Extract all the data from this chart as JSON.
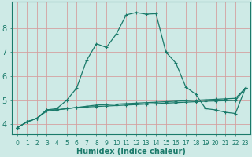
{
  "xlabel": "Humidex (Indice chaleur)",
  "bg_color": "#ceeae6",
  "grid_color": "#d4a0a0",
  "line_color": "#1a7a6a",
  "x": [
    0,
    1,
    2,
    3,
    4,
    5,
    6,
    7,
    8,
    9,
    10,
    11,
    12,
    13,
    14,
    15,
    16,
    17,
    18,
    19,
    20,
    21,
    22,
    23
  ],
  "line1": [
    3.85,
    4.1,
    4.25,
    4.6,
    4.6,
    4.65,
    4.7,
    4.72,
    4.74,
    4.76,
    4.78,
    4.8,
    4.82,
    4.84,
    4.86,
    4.88,
    4.9,
    4.92,
    4.94,
    4.96,
    4.97,
    4.98,
    4.99,
    5.5
  ],
  "line2": [
    3.85,
    4.1,
    4.25,
    4.6,
    4.65,
    5.0,
    5.5,
    6.65,
    7.35,
    7.2,
    7.75,
    8.55,
    8.65,
    8.58,
    8.6,
    7.0,
    6.55,
    5.55,
    5.25,
    4.65,
    4.6,
    4.5,
    4.45,
    5.5
  ],
  "line3": [
    3.85,
    4.1,
    4.25,
    4.55,
    4.6,
    4.65,
    4.7,
    4.75,
    4.8,
    4.82,
    4.84,
    4.86,
    4.88,
    4.9,
    4.92,
    4.94,
    4.96,
    4.98,
    5.0,
    5.02,
    5.04,
    5.06,
    5.08,
    5.5
  ],
  "ylim": [
    3.6,
    9.1
  ],
  "xlim": [
    -0.5,
    23.5
  ],
  "yticks": [
    4,
    5,
    6,
    7,
    8
  ],
  "xticks": [
    0,
    1,
    2,
    3,
    4,
    5,
    6,
    7,
    8,
    9,
    10,
    11,
    12,
    13,
    14,
    15,
    16,
    17,
    18,
    19,
    20,
    21,
    22,
    23
  ],
  "xlabel_fontsize": 7.0,
  "tick_fontsize_x": 5.5,
  "tick_fontsize_y": 7.0
}
